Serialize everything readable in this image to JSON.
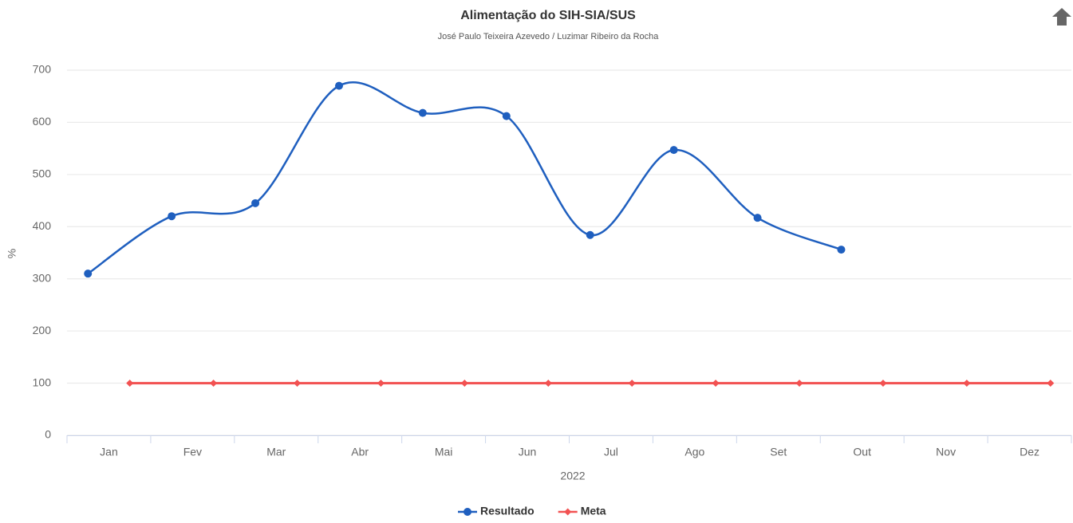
{
  "chart_data": {
    "type": "line",
    "title": "Alimentação do SIH-SIA/SUS",
    "subtitle": "José Paulo Teixeira Azevedo / Luzimar Ribeiro da Rocha",
    "y_label": "%",
    "x_label": "2022",
    "categories": [
      "Jan",
      "Fev",
      "Mar",
      "Abr",
      "Mai",
      "Jun",
      "Jul",
      "Ago",
      "Set",
      "Out",
      "Nov",
      "Dez"
    ],
    "series": [
      {
        "name": "Resultado",
        "color": "#1f5fbf",
        "values": [
          310,
          420,
          445,
          670,
          618,
          612,
          384,
          547,
          417,
          356,
          null,
          null
        ]
      },
      {
        "name": "Meta",
        "color": "#f25252",
        "values": [
          100,
          100,
          100,
          100,
          100,
          100,
          100,
          100,
          100,
          100,
          100,
          100
        ]
      }
    ],
    "ylim": [
      0,
      700
    ],
    "yticks": [
      0,
      100,
      200,
      300,
      400,
      500,
      600,
      700
    ],
    "grid": true
  }
}
